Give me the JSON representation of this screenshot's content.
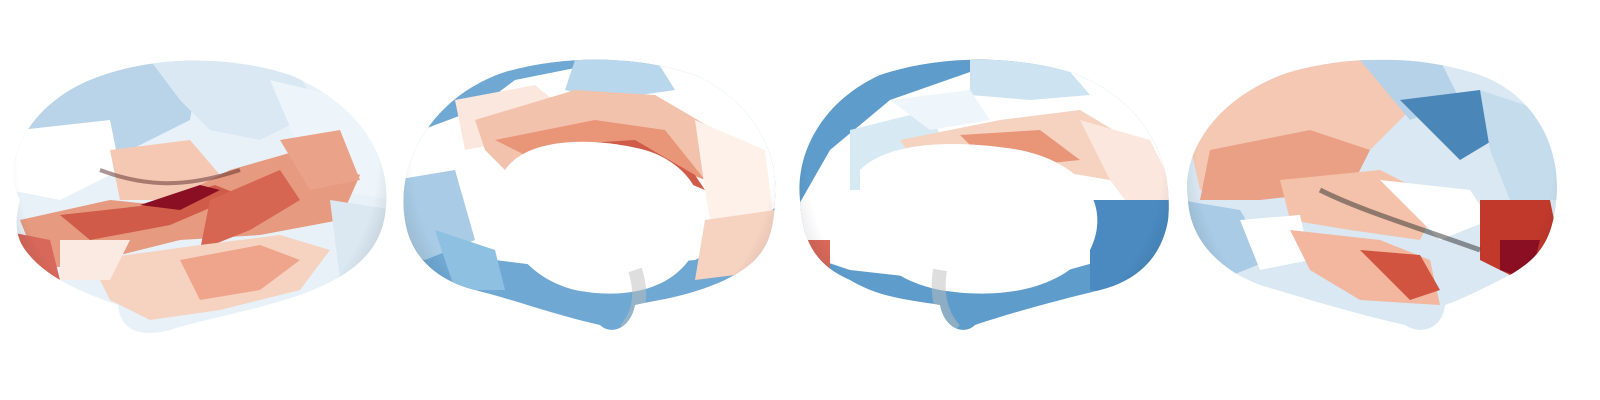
{
  "figure": {
    "description_visible_text": "",
    "colormap": {
      "name": "diverging-red-blue",
      "negative_strong": "#2f73b0",
      "negative_mid": "#7fb3d8",
      "negative_light": "#d7e8f3",
      "neutral": "#ffffff",
      "positive_light": "#f7d3c1",
      "positive_mid": "#e89072",
      "positive_strong": "#c0392b",
      "positive_max": "#8b0f22",
      "medial_wall": "#f5f5f5",
      "shading": "#9a9a9a"
    },
    "views": [
      {
        "id": "lh-lateral",
        "hemisphere": "left",
        "view": "lateral"
      },
      {
        "id": "lh-medial",
        "hemisphere": "left",
        "view": "medial"
      },
      {
        "id": "rh-medial",
        "hemisphere": "right",
        "view": "medial"
      },
      {
        "id": "rh-lateral",
        "hemisphere": "right",
        "view": "lateral"
      }
    ]
  }
}
